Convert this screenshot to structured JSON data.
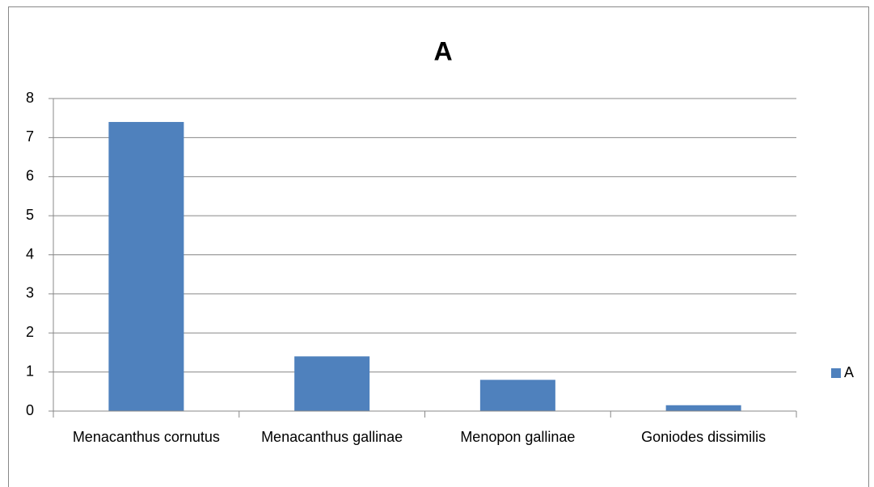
{
  "chart_data": {
    "type": "bar",
    "title": "A",
    "categories": [
      "Menacanthus cornutus",
      "Menacanthus gallinae",
      "Menopon gallinae",
      "Goniodes dissimilis"
    ],
    "series": [
      {
        "name": "A",
        "color": "#4f81bd",
        "values": [
          7.4,
          1.4,
          0.8,
          0.15
        ]
      }
    ],
    "ylim": [
      0,
      8
    ],
    "yticks": [
      0,
      1,
      2,
      3,
      4,
      5,
      6,
      7,
      8
    ],
    "grid": true,
    "legend": "right"
  }
}
